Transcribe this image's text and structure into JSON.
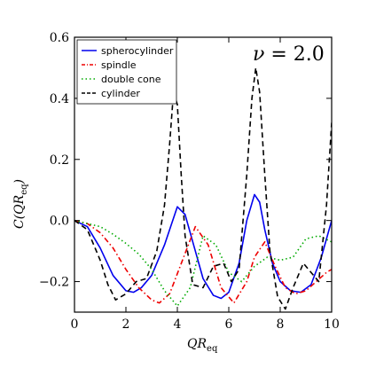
{
  "chart_data": {
    "type": "line",
    "xlabel": {
      "main": "QR",
      "sub": "eq"
    },
    "ylabel": {
      "func": "C(QR",
      "sub": "eq",
      "close": ")"
    },
    "xlim": [
      0,
      10
    ],
    "ylim": [
      -0.3,
      0.6
    ],
    "xticks": [
      {
        "value": 0,
        "label": "0"
      },
      {
        "value": 2,
        "label": "2"
      },
      {
        "value": 4,
        "label": "4"
      },
      {
        "value": 6,
        "label": "6"
      },
      {
        "value": 8,
        "label": "8"
      },
      {
        "value": 10,
        "label": "10"
      }
    ],
    "yticks": [
      {
        "value": -0.2,
        "label": "−0.2"
      },
      {
        "value": 0.0,
        "label": "0.0"
      },
      {
        "value": 0.2,
        "label": "0.2"
      },
      {
        "value": 0.4,
        "label": "0.4"
      },
      {
        "value": 0.6,
        "label": "0.6"
      }
    ],
    "annotation": {
      "symbol": "ν",
      "text": " = 2.0"
    },
    "legend_position": "top-left",
    "grid": false,
    "series": [
      {
        "name": "spherocylinder",
        "color": "#0000ee",
        "dash": "solid",
        "x": [
          0,
          0.5,
          1.0,
          1.5,
          2.0,
          2.3,
          2.6,
          3.0,
          3.5,
          4.0,
          4.3,
          4.6,
          5.0,
          5.4,
          5.7,
          6.0,
          6.4,
          6.7,
          7.0,
          7.2,
          7.4,
          7.7,
          8.0,
          8.4,
          8.8,
          9.2,
          9.6,
          10.0
        ],
        "y": [
          0,
          -0.02,
          -0.09,
          -0.18,
          -0.23,
          -0.235,
          -0.22,
          -0.18,
          -0.08,
          0.045,
          0.02,
          -0.07,
          -0.19,
          -0.245,
          -0.255,
          -0.235,
          -0.14,
          0.0,
          0.085,
          0.06,
          -0.03,
          -0.14,
          -0.2,
          -0.23,
          -0.235,
          -0.21,
          -0.12,
          0.0
        ]
      },
      {
        "name": "spindle",
        "color": "#ee0000",
        "dash": "dashdot",
        "x": [
          0,
          0.5,
          1.0,
          1.5,
          2.0,
          2.5,
          3.0,
          3.3,
          3.7,
          4.2,
          4.7,
          5.2,
          5.7,
          6.2,
          6.7,
          7.0,
          7.4,
          7.8,
          8.2,
          8.6,
          9.0,
          9.4,
          9.8,
          10.0
        ],
        "y": [
          0,
          -0.01,
          -0.04,
          -0.09,
          -0.16,
          -0.22,
          -0.26,
          -0.27,
          -0.24,
          -0.13,
          -0.02,
          -0.08,
          -0.22,
          -0.27,
          -0.2,
          -0.12,
          -0.07,
          -0.15,
          -0.22,
          -0.24,
          -0.23,
          -0.2,
          -0.17,
          -0.16
        ]
      },
      {
        "name": "double cone",
        "color": "#00aa00",
        "dash": "dotted",
        "x": [
          0,
          0.5,
          1.0,
          1.5,
          2.0,
          2.5,
          3.0,
          3.5,
          4.0,
          4.5,
          5.0,
          5.5,
          6.0,
          6.5,
          7.0,
          7.5,
          8.0,
          8.5,
          9.0,
          9.5,
          10.0
        ],
        "y": [
          0,
          -0.01,
          -0.02,
          -0.045,
          -0.075,
          -0.11,
          -0.16,
          -0.23,
          -0.28,
          -0.22,
          -0.05,
          -0.08,
          -0.17,
          -0.2,
          -0.15,
          -0.12,
          -0.13,
          -0.12,
          -0.06,
          -0.05,
          -0.07
        ]
      },
      {
        "name": "cylinder",
        "color": "#000000",
        "dash": "dashed",
        "x": [
          0,
          0.5,
          1.0,
          1.3,
          1.6,
          2.0,
          2.4,
          2.8,
          3.2,
          3.5,
          3.7,
          3.85,
          4.0,
          4.15,
          4.3,
          4.6,
          5.0,
          5.4,
          5.8,
          6.1,
          6.4,
          6.7,
          6.9,
          7.05,
          7.2,
          7.4,
          7.6,
          7.9,
          8.2,
          8.5,
          8.9,
          9.2,
          9.5,
          9.8,
          10.0
        ],
        "y": [
          0,
          -0.03,
          -0.13,
          -0.21,
          -0.26,
          -0.24,
          -0.2,
          -0.19,
          -0.1,
          0.05,
          0.25,
          0.42,
          0.38,
          0.15,
          -0.05,
          -0.21,
          -0.22,
          -0.15,
          -0.14,
          -0.2,
          -0.16,
          0.15,
          0.4,
          0.5,
          0.42,
          0.15,
          -0.1,
          -0.25,
          -0.29,
          -0.22,
          -0.14,
          -0.17,
          -0.2,
          0.05,
          0.32
        ]
      }
    ]
  }
}
